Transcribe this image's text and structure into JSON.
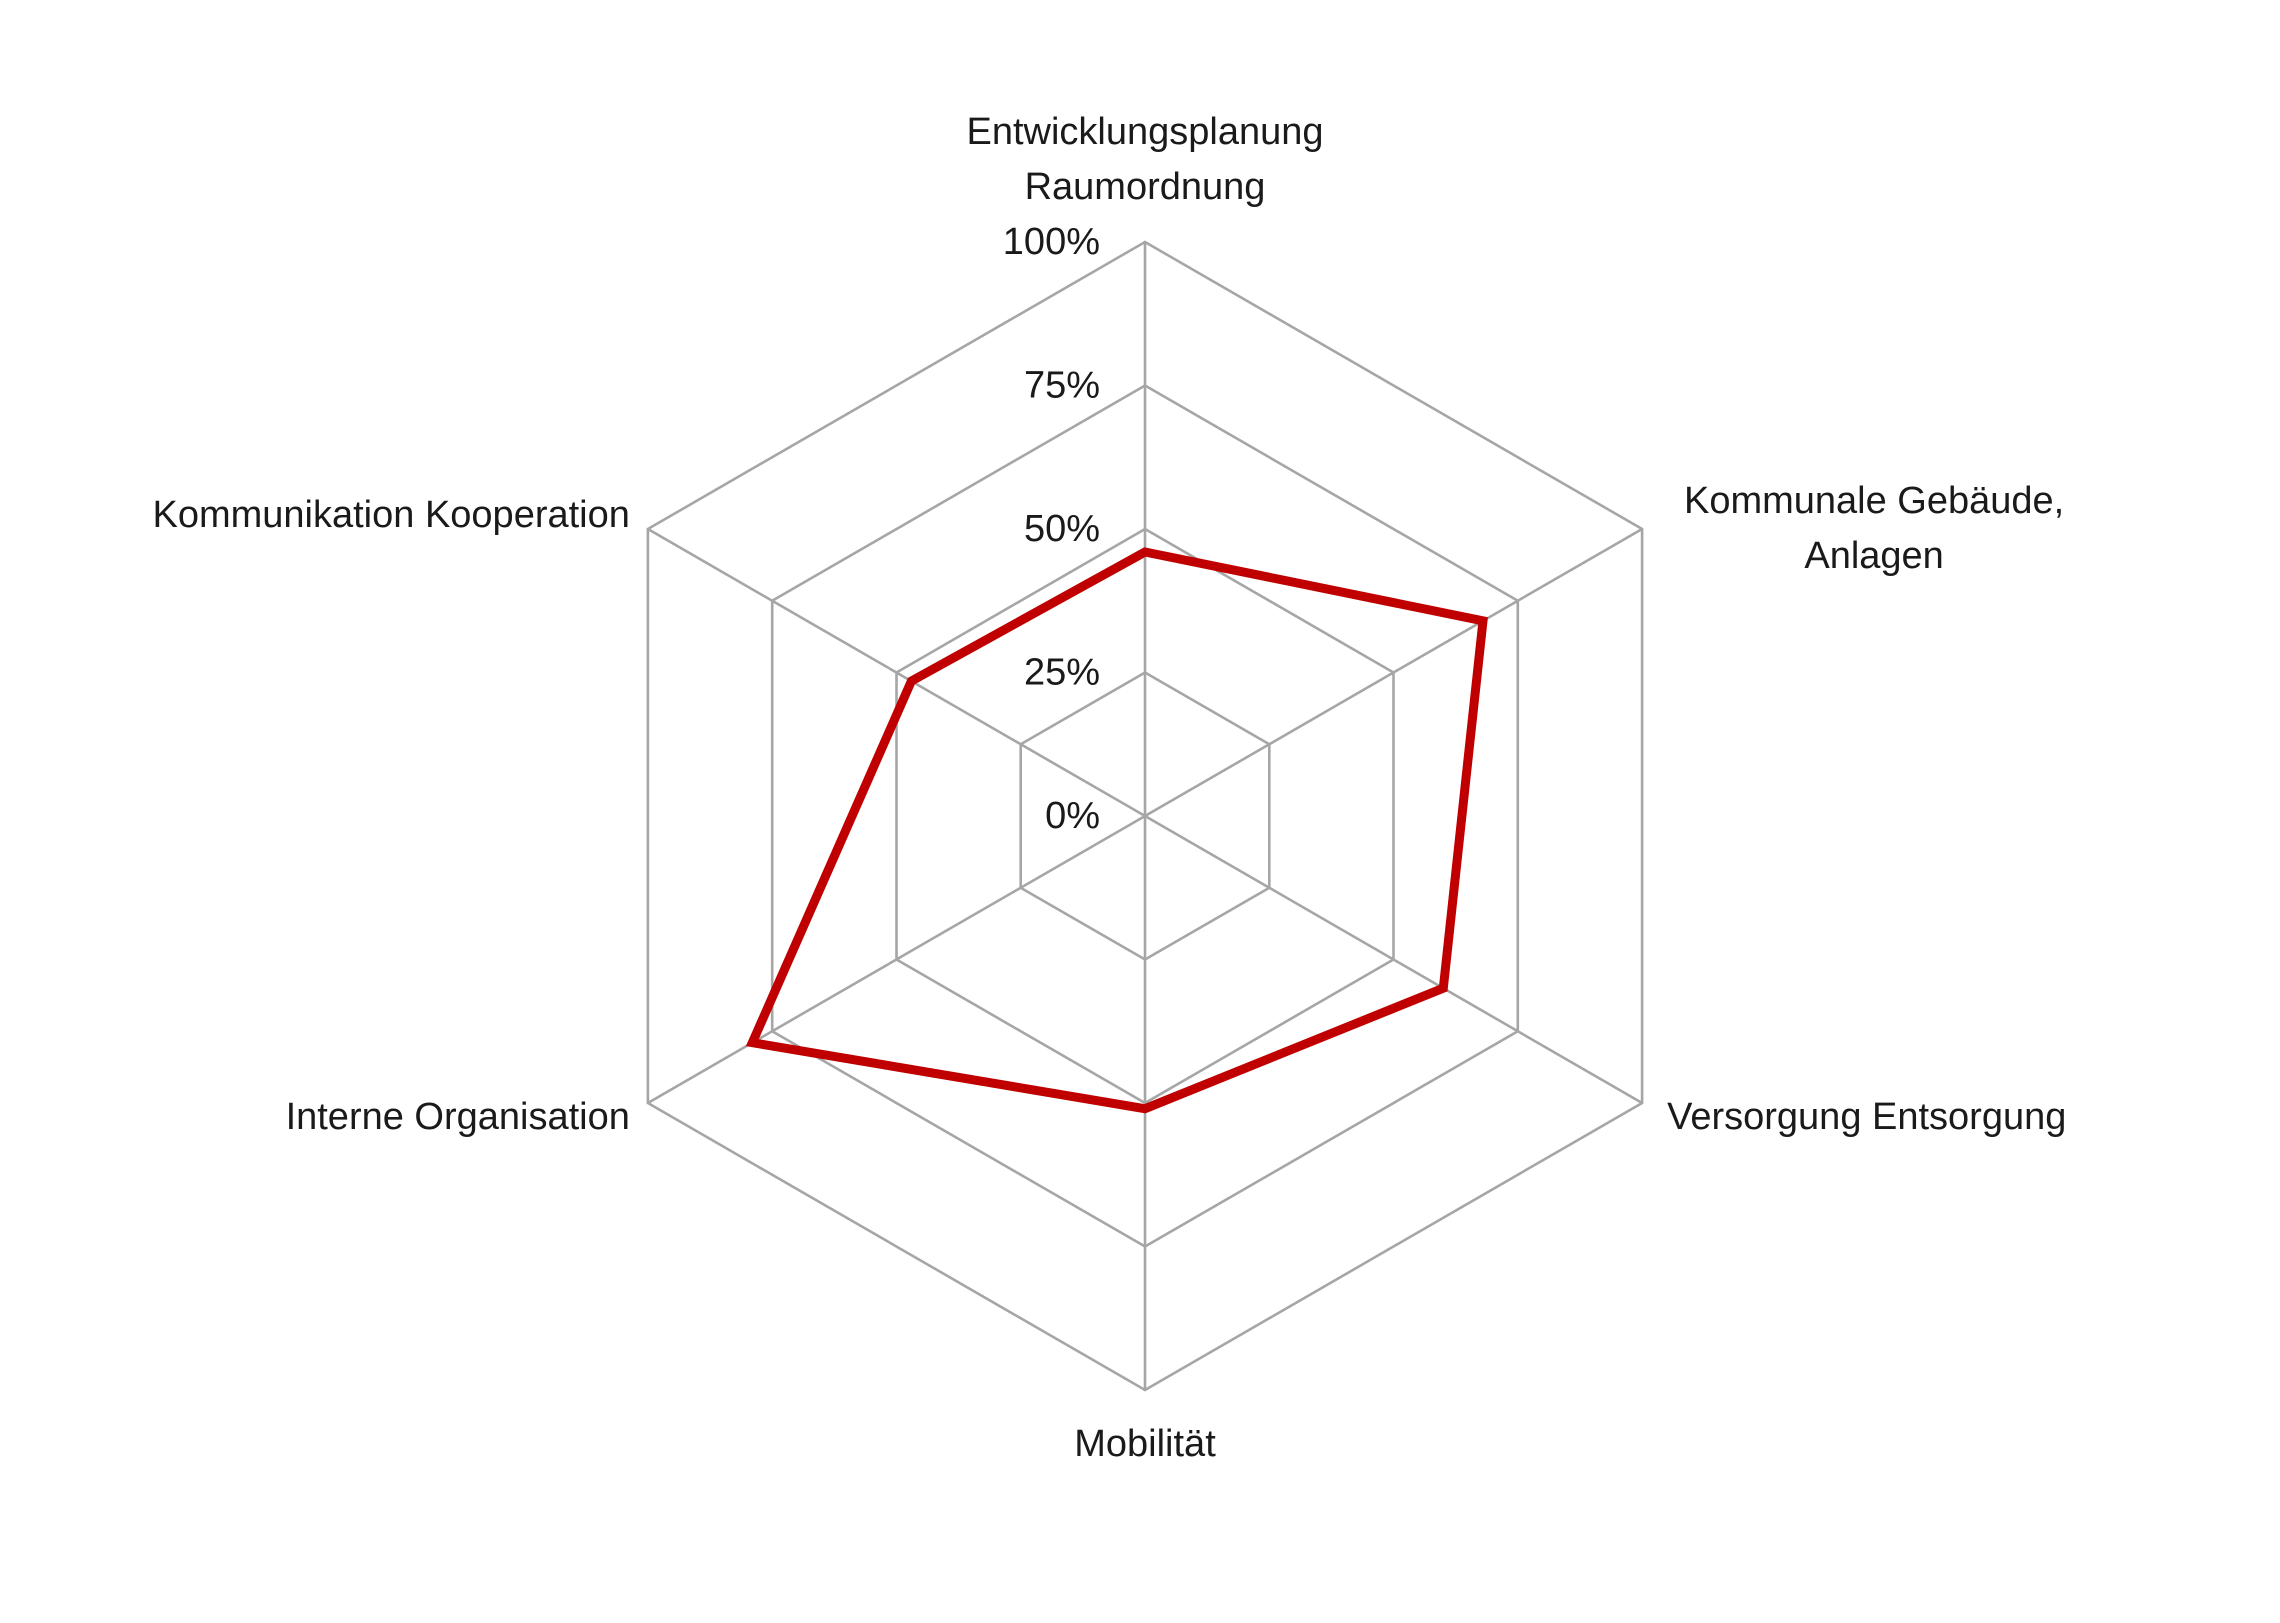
{
  "chart_data": {
    "type": "radar",
    "axes": [
      {
        "label_lines": [
          "Entwicklungsplanung",
          "Raumordnung"
        ]
      },
      {
        "label_lines": [
          "Kommunale Gebäude,",
          "Anlagen"
        ]
      },
      {
        "label_lines": [
          "Versorgung Entsorgung"
        ]
      },
      {
        "label_lines": [
          "Mobilität"
        ]
      },
      {
        "label_lines": [
          "Interne Organisation"
        ]
      },
      {
        "label_lines": [
          "Kommunikation Kooperation"
        ]
      }
    ],
    "tick_labels": [
      "0%",
      "25%",
      "50%",
      "75%",
      "100%"
    ],
    "tick_values": [
      0,
      25,
      50,
      75,
      100
    ],
    "range": [
      0,
      100
    ],
    "series": [
      {
        "values": [
          46,
          68,
          60,
          51,
          79,
          47
        ],
        "color": "#c00000"
      }
    ],
    "grid_color": "#a6a6a6",
    "legend": "none"
  }
}
